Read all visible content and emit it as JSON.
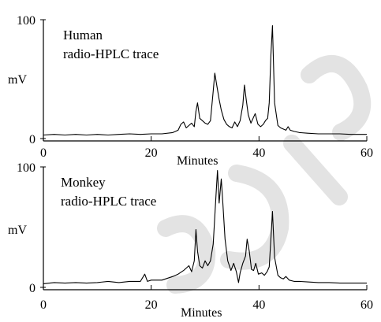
{
  "chart_data": [
    {
      "type": "line",
      "annotation_lines": [
        "Human",
        "radio-HPLC trace"
      ],
      "xlabel": "Minutes",
      "ylabel": "mV",
      "xlim": [
        0,
        60
      ],
      "ylim": [
        0,
        100
      ],
      "x_ticks": [
        0,
        20,
        40,
        60
      ],
      "y_ticks": [
        0,
        100
      ],
      "grid": false,
      "series": [
        {
          "x": [
            0,
            2,
            4,
            6,
            8,
            10,
            12,
            14,
            16,
            18,
            20,
            22,
            24,
            25,
            25.5,
            26,
            26.5,
            27,
            27.5,
            28,
            28.3,
            28.6,
            29,
            29.5,
            30,
            30.5,
            31,
            31.5,
            31.8,
            32.2,
            32.6,
            33,
            33.5,
            34,
            34.5,
            35,
            35.5,
            36,
            36.5,
            37,
            37.3,
            37.6,
            38,
            38.5,
            38.9,
            39.3,
            39.8,
            40.3,
            40.8,
            41.2,
            41.6,
            41.9,
            42.2,
            42.5,
            42.9,
            43.5,
            44,
            44.5,
            45,
            45.4,
            45.8,
            46.5,
            47.5,
            49,
            51,
            53,
            55,
            57,
            59,
            60
          ],
          "y": [
            3,
            3.5,
            3,
            3.5,
            3,
            3.5,
            3,
            3.5,
            4,
            3.5,
            4,
            4,
            5,
            7,
            12,
            14,
            9,
            11,
            13,
            10,
            23,
            30,
            17,
            15,
            13,
            12,
            15,
            40,
            55,
            44,
            33,
            24,
            16,
            12,
            10,
            9,
            14,
            10,
            15,
            28,
            45,
            34,
            20,
            13,
            17,
            21,
            12,
            10,
            12,
            15,
            17,
            30,
            70,
            95,
            30,
            11,
            9,
            8,
            7,
            10,
            7,
            6,
            5,
            4.5,
            4,
            4,
            4,
            3.5,
            3.5,
            3.5
          ]
        }
      ]
    },
    {
      "type": "line",
      "annotation_lines": [
        "Monkey",
        "radio-HPLC trace"
      ],
      "xlabel": "Minutes",
      "ylabel": "mV",
      "xlim": [
        0,
        60
      ],
      "ylim": [
        0,
        100
      ],
      "x_ticks": [
        0,
        20,
        40,
        60
      ],
      "y_ticks": [
        0,
        100
      ],
      "grid": false,
      "series": [
        {
          "x": [
            0,
            2,
            4,
            6,
            8,
            10,
            12,
            14,
            16,
            18,
            18.8,
            19.3,
            20,
            22,
            24,
            25,
            26,
            27,
            27.5,
            28,
            28.3,
            28.6,
            29,
            29.5,
            30,
            30.5,
            31,
            31.5,
            32,
            32.3,
            32.6,
            33,
            33.3,
            33.7,
            34.2,
            34.8,
            35.3,
            35.8,
            36.2,
            36.5,
            37,
            37.5,
            37.8,
            38.2,
            38.6,
            39,
            39.4,
            39.9,
            40.5,
            41,
            41.5,
            41.9,
            42.2,
            42.5,
            42.9,
            43.5,
            44,
            44.5,
            45,
            45.6,
            46.5,
            47.5,
            49,
            51,
            53,
            55,
            57,
            59,
            60
          ],
          "y": [
            3,
            4,
            3.5,
            4,
            3.5,
            4,
            5,
            4,
            5,
            5,
            11,
            5,
            6,
            6,
            9,
            11,
            14,
            18,
            13,
            22,
            48,
            30,
            18,
            16,
            22,
            18,
            22,
            36,
            75,
            97,
            70,
            90,
            70,
            40,
            22,
            14,
            20,
            13,
            4,
            12,
            20,
            26,
            40,
            30,
            15,
            14,
            20,
            11,
            12,
            10,
            13,
            17,
            40,
            63,
            25,
            10,
            8,
            7,
            9,
            6,
            5,
            5,
            4.5,
            4,
            4,
            3.5,
            3.5,
            3.5,
            3.5
          ]
        }
      ]
    }
  ]
}
